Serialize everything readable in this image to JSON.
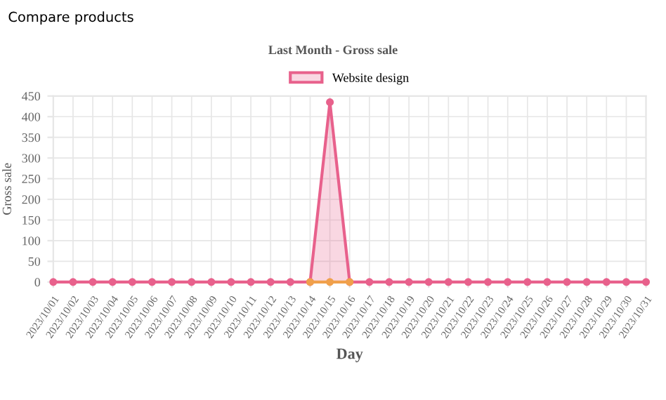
{
  "chart_data": {
    "type": "line",
    "title": "Last Month - Gross sale",
    "xlabel": "Day",
    "ylabel": "Gross sale",
    "annotations": [
      "Compare products"
    ],
    "categories": [
      "2023/10/01",
      "2023/10/02",
      "2023/10/03",
      "2023/10/04",
      "2023/10/05",
      "2023/10/06",
      "2023/10/07",
      "2023/10/08",
      "2023/10/09",
      "2023/10/10",
      "2023/10/11",
      "2023/10/12",
      "2023/10/13",
      "2023/10/14",
      "2023/10/15",
      "2023/10/16",
      "2023/10/17",
      "2023/10/18",
      "2023/10/19",
      "2023/10/20",
      "2023/10/21",
      "2023/10/22",
      "2023/10/23",
      "2023/10/24",
      "2023/10/25",
      "2023/10/26",
      "2023/10/27",
      "2023/10/28",
      "2023/10/29",
      "2023/10/30",
      "2023/10/31"
    ],
    "series": [
      {
        "name": "Website design",
        "type": "area",
        "color": "#e8618c",
        "values": [
          0,
          0,
          0,
          0,
          0,
          0,
          0,
          0,
          0,
          0,
          0,
          0,
          0,
          0,
          435,
          0,
          0,
          0,
          0,
          0,
          0,
          0,
          0,
          0,
          0,
          0,
          0,
          0,
          0,
          0,
          0
        ]
      },
      {
        "color": "#f0a04b",
        "values": [
          null,
          null,
          null,
          null,
          null,
          null,
          null,
          null,
          null,
          null,
          null,
          null,
          null,
          0,
          0,
          0,
          null,
          null,
          null,
          null,
          null,
          null,
          null,
          null,
          null,
          null,
          null,
          null,
          null,
          null,
          null
        ]
      }
    ],
    "ylim": [
      0,
      450
    ],
    "yticks": [
      0,
      50,
      100,
      150,
      200,
      250,
      300,
      350,
      400,
      450
    ],
    "grid": true,
    "legend": "top",
    "marker": "circle"
  }
}
